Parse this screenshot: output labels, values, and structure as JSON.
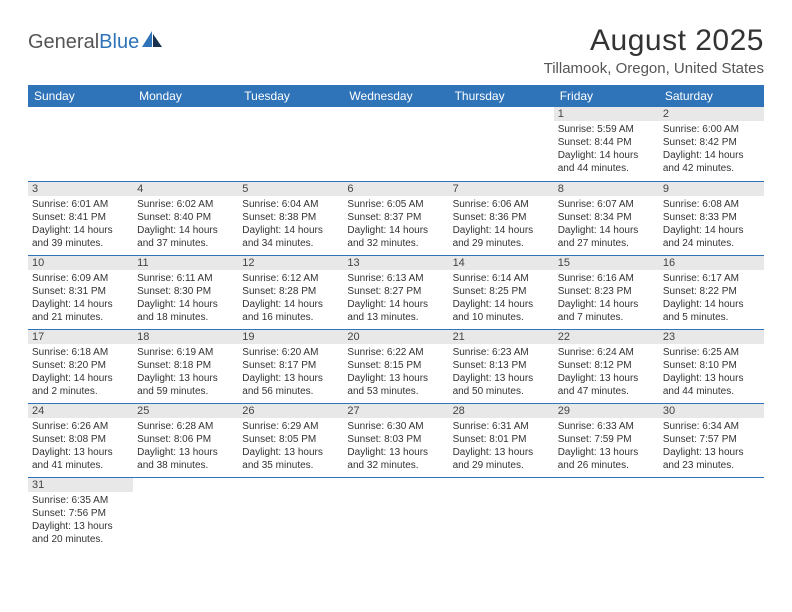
{
  "logo": {
    "part1": "General",
    "part2": "Blue"
  },
  "title": "August 2025",
  "location": "Tillamook, Oregon, United States",
  "colors": {
    "header_bg": "#2f73b8",
    "header_text": "#ffffff",
    "daynum_bg": "#e8e8e8",
    "border": "#2f73b8",
    "text": "#333333"
  },
  "weekdays": [
    "Sunday",
    "Monday",
    "Tuesday",
    "Wednesday",
    "Thursday",
    "Friday",
    "Saturday"
  ],
  "weeks": [
    [
      null,
      null,
      null,
      null,
      null,
      {
        "n": "1",
        "sr": "Sunrise: 5:59 AM",
        "ss": "Sunset: 8:44 PM",
        "dl1": "Daylight: 14 hours",
        "dl2": "and 44 minutes."
      },
      {
        "n": "2",
        "sr": "Sunrise: 6:00 AM",
        "ss": "Sunset: 8:42 PM",
        "dl1": "Daylight: 14 hours",
        "dl2": "and 42 minutes."
      }
    ],
    [
      {
        "n": "3",
        "sr": "Sunrise: 6:01 AM",
        "ss": "Sunset: 8:41 PM",
        "dl1": "Daylight: 14 hours",
        "dl2": "and 39 minutes."
      },
      {
        "n": "4",
        "sr": "Sunrise: 6:02 AM",
        "ss": "Sunset: 8:40 PM",
        "dl1": "Daylight: 14 hours",
        "dl2": "and 37 minutes."
      },
      {
        "n": "5",
        "sr": "Sunrise: 6:04 AM",
        "ss": "Sunset: 8:38 PM",
        "dl1": "Daylight: 14 hours",
        "dl2": "and 34 minutes."
      },
      {
        "n": "6",
        "sr": "Sunrise: 6:05 AM",
        "ss": "Sunset: 8:37 PM",
        "dl1": "Daylight: 14 hours",
        "dl2": "and 32 minutes."
      },
      {
        "n": "7",
        "sr": "Sunrise: 6:06 AM",
        "ss": "Sunset: 8:36 PM",
        "dl1": "Daylight: 14 hours",
        "dl2": "and 29 minutes."
      },
      {
        "n": "8",
        "sr": "Sunrise: 6:07 AM",
        "ss": "Sunset: 8:34 PM",
        "dl1": "Daylight: 14 hours",
        "dl2": "and 27 minutes."
      },
      {
        "n": "9",
        "sr": "Sunrise: 6:08 AM",
        "ss": "Sunset: 8:33 PM",
        "dl1": "Daylight: 14 hours",
        "dl2": "and 24 minutes."
      }
    ],
    [
      {
        "n": "10",
        "sr": "Sunrise: 6:09 AM",
        "ss": "Sunset: 8:31 PM",
        "dl1": "Daylight: 14 hours",
        "dl2": "and 21 minutes."
      },
      {
        "n": "11",
        "sr": "Sunrise: 6:11 AM",
        "ss": "Sunset: 8:30 PM",
        "dl1": "Daylight: 14 hours",
        "dl2": "and 18 minutes."
      },
      {
        "n": "12",
        "sr": "Sunrise: 6:12 AM",
        "ss": "Sunset: 8:28 PM",
        "dl1": "Daylight: 14 hours",
        "dl2": "and 16 minutes."
      },
      {
        "n": "13",
        "sr": "Sunrise: 6:13 AM",
        "ss": "Sunset: 8:27 PM",
        "dl1": "Daylight: 14 hours",
        "dl2": "and 13 minutes."
      },
      {
        "n": "14",
        "sr": "Sunrise: 6:14 AM",
        "ss": "Sunset: 8:25 PM",
        "dl1": "Daylight: 14 hours",
        "dl2": "and 10 minutes."
      },
      {
        "n": "15",
        "sr": "Sunrise: 6:16 AM",
        "ss": "Sunset: 8:23 PM",
        "dl1": "Daylight: 14 hours",
        "dl2": "and 7 minutes."
      },
      {
        "n": "16",
        "sr": "Sunrise: 6:17 AM",
        "ss": "Sunset: 8:22 PM",
        "dl1": "Daylight: 14 hours",
        "dl2": "and 5 minutes."
      }
    ],
    [
      {
        "n": "17",
        "sr": "Sunrise: 6:18 AM",
        "ss": "Sunset: 8:20 PM",
        "dl1": "Daylight: 14 hours",
        "dl2": "and 2 minutes."
      },
      {
        "n": "18",
        "sr": "Sunrise: 6:19 AM",
        "ss": "Sunset: 8:18 PM",
        "dl1": "Daylight: 13 hours",
        "dl2": "and 59 minutes."
      },
      {
        "n": "19",
        "sr": "Sunrise: 6:20 AM",
        "ss": "Sunset: 8:17 PM",
        "dl1": "Daylight: 13 hours",
        "dl2": "and 56 minutes."
      },
      {
        "n": "20",
        "sr": "Sunrise: 6:22 AM",
        "ss": "Sunset: 8:15 PM",
        "dl1": "Daylight: 13 hours",
        "dl2": "and 53 minutes."
      },
      {
        "n": "21",
        "sr": "Sunrise: 6:23 AM",
        "ss": "Sunset: 8:13 PM",
        "dl1": "Daylight: 13 hours",
        "dl2": "and 50 minutes."
      },
      {
        "n": "22",
        "sr": "Sunrise: 6:24 AM",
        "ss": "Sunset: 8:12 PM",
        "dl1": "Daylight: 13 hours",
        "dl2": "and 47 minutes."
      },
      {
        "n": "23",
        "sr": "Sunrise: 6:25 AM",
        "ss": "Sunset: 8:10 PM",
        "dl1": "Daylight: 13 hours",
        "dl2": "and 44 minutes."
      }
    ],
    [
      {
        "n": "24",
        "sr": "Sunrise: 6:26 AM",
        "ss": "Sunset: 8:08 PM",
        "dl1": "Daylight: 13 hours",
        "dl2": "and 41 minutes."
      },
      {
        "n": "25",
        "sr": "Sunrise: 6:28 AM",
        "ss": "Sunset: 8:06 PM",
        "dl1": "Daylight: 13 hours",
        "dl2": "and 38 minutes."
      },
      {
        "n": "26",
        "sr": "Sunrise: 6:29 AM",
        "ss": "Sunset: 8:05 PM",
        "dl1": "Daylight: 13 hours",
        "dl2": "and 35 minutes."
      },
      {
        "n": "27",
        "sr": "Sunrise: 6:30 AM",
        "ss": "Sunset: 8:03 PM",
        "dl1": "Daylight: 13 hours",
        "dl2": "and 32 minutes."
      },
      {
        "n": "28",
        "sr": "Sunrise: 6:31 AM",
        "ss": "Sunset: 8:01 PM",
        "dl1": "Daylight: 13 hours",
        "dl2": "and 29 minutes."
      },
      {
        "n": "29",
        "sr": "Sunrise: 6:33 AM",
        "ss": "Sunset: 7:59 PM",
        "dl1": "Daylight: 13 hours",
        "dl2": "and 26 minutes."
      },
      {
        "n": "30",
        "sr": "Sunrise: 6:34 AM",
        "ss": "Sunset: 7:57 PM",
        "dl1": "Daylight: 13 hours",
        "dl2": "and 23 minutes."
      }
    ],
    [
      {
        "n": "31",
        "sr": "Sunrise: 6:35 AM",
        "ss": "Sunset: 7:56 PM",
        "dl1": "Daylight: 13 hours",
        "dl2": "and 20 minutes."
      },
      null,
      null,
      null,
      null,
      null,
      null
    ]
  ]
}
